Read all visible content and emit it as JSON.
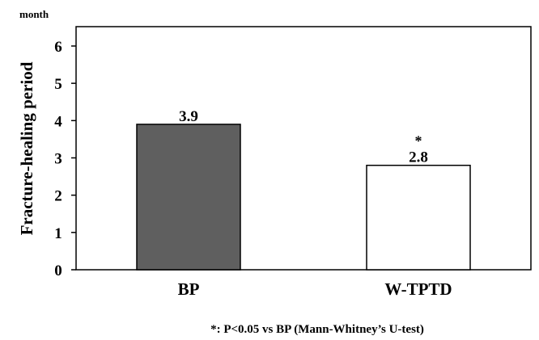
{
  "chart_data": {
    "type": "bar",
    "title": "",
    "xlabel": "",
    "ylabel": "Fracture-healing period",
    "y_unit": "month",
    "ylim": [
      0,
      6.5
    ],
    "yticks": [
      0,
      1,
      2,
      3,
      4,
      5,
      6
    ],
    "categories": [
      "BP",
      "W-TPTD"
    ],
    "values": [
      3.9,
      2.8
    ],
    "data_labels": [
      "3.9",
      "2.8"
    ],
    "significance_marks": [
      "",
      "*"
    ],
    "bar_colors": [
      "#5f5f5f",
      "#ffffff"
    ],
    "grid": false,
    "legend": "none",
    "footnote": "*: P<0.05 vs BP (Mann-Whitney’s U-test)"
  }
}
